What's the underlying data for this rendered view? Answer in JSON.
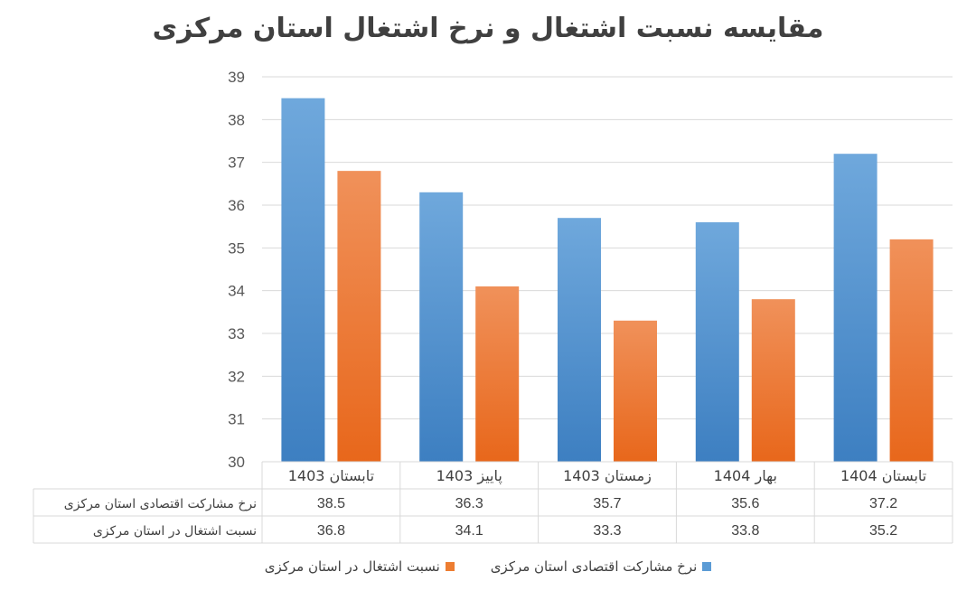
{
  "chart_data": {
    "type": "bar",
    "title": "مقایسه نسبت اشتغال و نرخ اشتغال استان مرکزی",
    "categories": [
      "تابستان 1403",
      "پاییز 1403",
      "زمستان 1403",
      "بهار 1404",
      "تابستان 1404"
    ],
    "series": [
      {
        "name": "نرخ مشارکت اقتصادی استان مرکزی",
        "values": [
          38.5,
          36.3,
          35.7,
          35.6,
          37.2
        ],
        "color": "#5B9BD5"
      },
      {
        "name": "نسبت اشتغال در استان مرکزی",
        "values": [
          36.8,
          34.1,
          33.3,
          33.8,
          35.2
        ],
        "color": "#ED7D31"
      }
    ],
    "ylim": [
      30,
      39
    ],
    "yticks": [
      30,
      31,
      32,
      33,
      34,
      35,
      36,
      37,
      38,
      39
    ],
    "grid": true,
    "legend": "bottom",
    "data_table": true
  }
}
